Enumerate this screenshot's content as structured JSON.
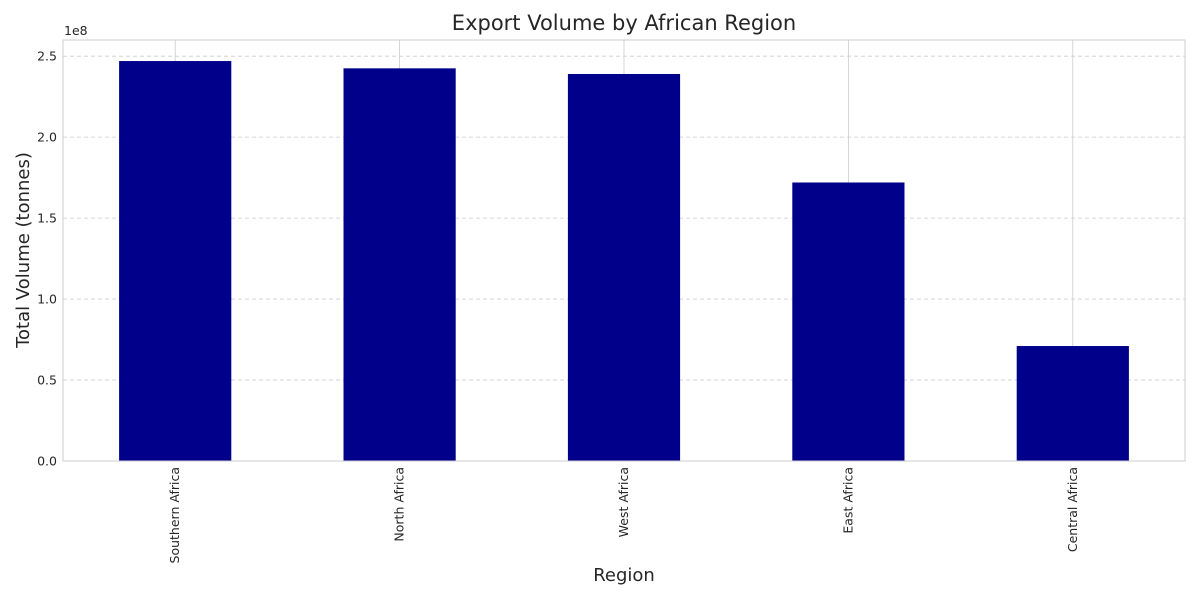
{
  "chart_data": {
    "type": "bar",
    "title": "Export Volume by African Region",
    "xlabel": "Region",
    "ylabel": "Total Volume (tonnes)",
    "categories": [
      "Southern Africa",
      "North Africa",
      "West Africa",
      "East Africa",
      "Central Africa"
    ],
    "values": [
      247000000,
      242500000,
      239000000,
      172000000,
      71000000
    ],
    "ylim": [
      0,
      260000000
    ],
    "y_ticks": [
      0,
      50000000,
      100000000,
      150000000,
      200000000,
      250000000
    ],
    "y_tick_labels": [
      "0.0",
      "0.5",
      "1.0",
      "1.5",
      "2.0",
      "2.5"
    ],
    "y_offset_label": "1e8",
    "grid": true,
    "bar_color": "#00008b",
    "grid_color": "#cccccc",
    "spine_color": "#cccccc"
  }
}
